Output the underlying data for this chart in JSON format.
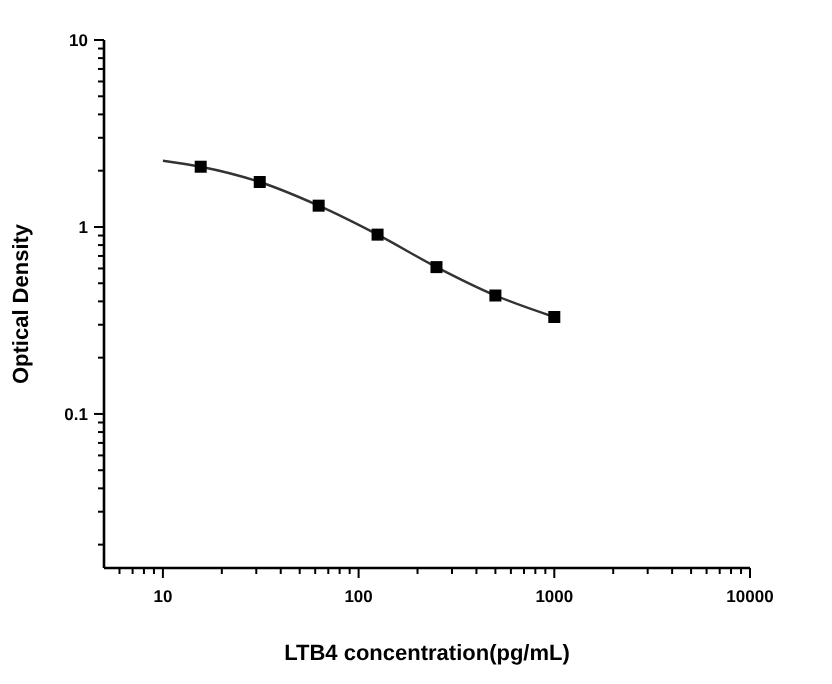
{
  "chart_data": {
    "type": "scatter",
    "xlabel": "LTB4 concentration(pg/mL)",
    "ylabel": "Optical Density",
    "log": "xy",
    "xlim": [
      5,
      10000
    ],
    "ylim": [
      0.015,
      10
    ],
    "xticks": [
      {
        "value": 6,
        "label": null
      },
      {
        "value": 7,
        "label": null
      },
      {
        "value": 8,
        "label": null
      },
      {
        "value": 9,
        "label": null
      },
      10,
      {
        "value": 20,
        "label": null
      },
      {
        "value": 30,
        "label": null
      },
      {
        "value": 40,
        "label": null
      },
      {
        "value": 50,
        "label": null
      },
      {
        "value": 60,
        "label": null
      },
      {
        "value": 70,
        "label": null
      },
      {
        "value": 80,
        "label": null
      },
      {
        "value": 90,
        "label": null
      },
      100,
      {
        "value": 200,
        "label": null
      },
      {
        "value": 300,
        "label": null
      },
      {
        "value": 400,
        "label": null
      },
      {
        "value": 500,
        "label": null
      },
      {
        "value": 600,
        "label": null
      },
      {
        "value": 700,
        "label": null
      },
      {
        "value": 800,
        "label": null
      },
      {
        "value": 900,
        "label": null
      },
      1000,
      {
        "value": 2000,
        "label": null
      },
      {
        "value": 3000,
        "label": null
      },
      {
        "value": 4000,
        "label": null
      },
      {
        "value": 5000,
        "label": null
      },
      {
        "value": 6000,
        "label": null
      },
      {
        "value": 7000,
        "label": null
      },
      {
        "value": 8000,
        "label": null
      },
      {
        "value": 9000,
        "label": null
      },
      10000
    ],
    "yticks": [
      {
        "value": 0.02,
        "label": null
      },
      {
        "value": 0.03,
        "label": null
      },
      {
        "value": 0.04,
        "label": null
      },
      {
        "value": 0.05,
        "label": null
      },
      {
        "value": 0.06,
        "label": null
      },
      {
        "value": 0.07,
        "label": null
      },
      {
        "value": 0.08,
        "label": null
      },
      {
        "value": 0.09,
        "label": null
      },
      0.1,
      {
        "value": 0.2,
        "label": null
      },
      {
        "value": 0.3,
        "label": null
      },
      {
        "value": 0.4,
        "label": null
      },
      {
        "value": 0.5,
        "label": null
      },
      {
        "value": 0.6,
        "label": null
      },
      {
        "value": 0.7,
        "label": null
      },
      {
        "value": 0.8,
        "label": null
      },
      {
        "value": 0.9,
        "label": null
      },
      1,
      {
        "value": 2,
        "label": null
      },
      {
        "value": 3,
        "label": null
      },
      {
        "value": 4,
        "label": null
      },
      {
        "value": 5,
        "label": null
      },
      {
        "value": 6,
        "label": null
      },
      {
        "value": 7,
        "label": null
      },
      {
        "value": 8,
        "label": null
      },
      {
        "value": 9,
        "label": null
      },
      10
    ],
    "series": [
      {
        "type": "line",
        "marker": "none",
        "color": "#333333",
        "x": [
          10,
          15.6,
          31.25,
          62.5,
          125,
          250,
          500,
          1000
        ],
        "values": [
          2.26,
          2.1,
          1.74,
          1.3,
          0.91,
          0.61,
          0.43,
          0.33
        ]
      },
      {
        "marker": "square",
        "color": "#000000",
        "x": [
          15.6,
          31.25,
          62.5,
          125,
          250,
          500,
          1000
        ],
        "values": [
          2.1,
          1.74,
          1.3,
          0.91,
          0.61,
          0.43,
          0.33
        ]
      }
    ]
  }
}
